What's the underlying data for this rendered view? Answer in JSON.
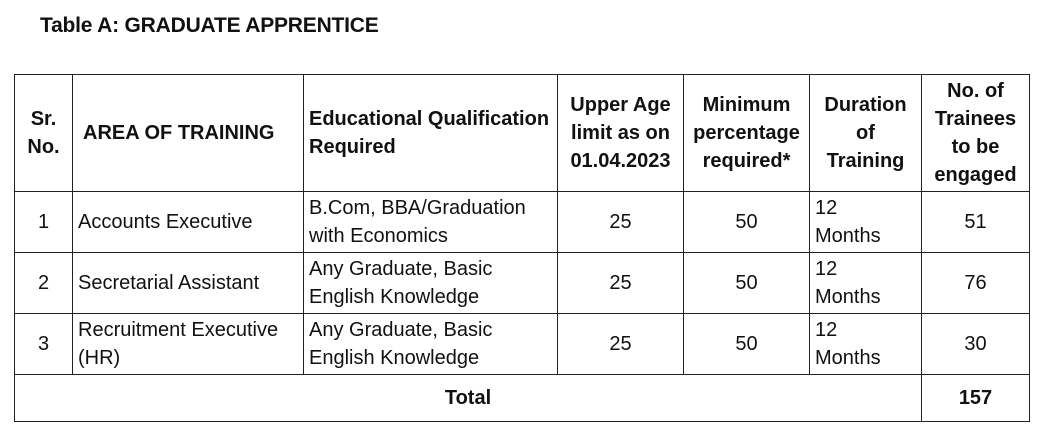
{
  "title": "Table A: GRADUATE APPRENTICE",
  "headers": {
    "sr": [
      "Sr.",
      "No."
    ],
    "area": "AREA OF TRAINING",
    "qualification": [
      "Educational Qualification",
      "Required"
    ],
    "age": [
      "Upper Age",
      "limit as on",
      "01.04.2023"
    ],
    "percentage": [
      "Minimum",
      "percentage",
      "required*"
    ],
    "duration": [
      "Duration",
      "of Training"
    ],
    "trainees": [
      "No. of",
      "Trainees",
      "to be",
      "engaged"
    ]
  },
  "rows": [
    {
      "sr": "1",
      "area": [
        "Accounts Executive"
      ],
      "qualification": [
        "B.Com,  BBA/Graduation",
        "with Economics"
      ],
      "age": "25",
      "percentage": "50",
      "duration": [
        "12",
        "Months"
      ],
      "trainees": "51"
    },
    {
      "sr": "2",
      "area": [
        "Secretarial Assistant"
      ],
      "qualification": [
        "Any Graduate, Basic",
        "English Knowledge"
      ],
      "age": "25",
      "percentage": "50",
      "duration": [
        "12",
        "Months"
      ],
      "trainees": "76"
    },
    {
      "sr": "3",
      "area": [
        "Recruitment Executive",
        "(HR)"
      ],
      "qualification": [
        "Any Graduate, Basic",
        "English Knowledge"
      ],
      "age": "25",
      "percentage": "50",
      "duration": [
        "12",
        "Months"
      ],
      "trainees": "30"
    }
  ],
  "total": {
    "label": "Total",
    "value": "157"
  }
}
